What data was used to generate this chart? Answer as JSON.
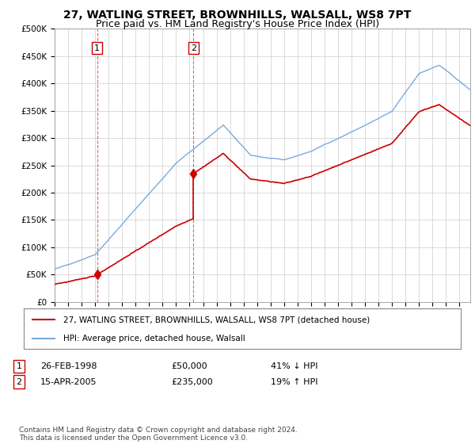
{
  "title": "27, WATLING STREET, BROWNHILLS, WALSALL, WS8 7PT",
  "subtitle": "Price paid vs. HM Land Registry's House Price Index (HPI)",
  "legend_line1": "27, WATLING STREET, BROWNHILLS, WALSALL, WS8 7PT (detached house)",
  "legend_line2": "HPI: Average price, detached house, Walsall",
  "footer": "Contains HM Land Registry data © Crown copyright and database right 2024.\nThis data is licensed under the Open Government Licence v3.0.",
  "sale1_date": "26-FEB-1998",
  "sale1_price": "£50,000",
  "sale1_hpi": "41% ↓ HPI",
  "sale2_date": "15-APR-2005",
  "sale2_price": "£235,000",
  "sale2_hpi": "19% ↑ HPI",
  "sale1_year": 1998.15,
  "sale1_value": 50000,
  "sale2_year": 2005.29,
  "sale2_value": 235000,
  "hpi_color": "#7aaadd",
  "price_color": "#cc0000",
  "dashed_line_color": "#cc0000",
  "background_color": "#ffffff",
  "grid_color": "#cccccc",
  "ylim": [
    0,
    500000
  ],
  "xlim_start": 1995,
  "xlim_end": 2025.8,
  "title_fontsize": 10,
  "subtitle_fontsize": 9,
  "tick_fontsize": 7.5,
  "legend_fontsize": 7.5,
  "footer_fontsize": 6.5
}
